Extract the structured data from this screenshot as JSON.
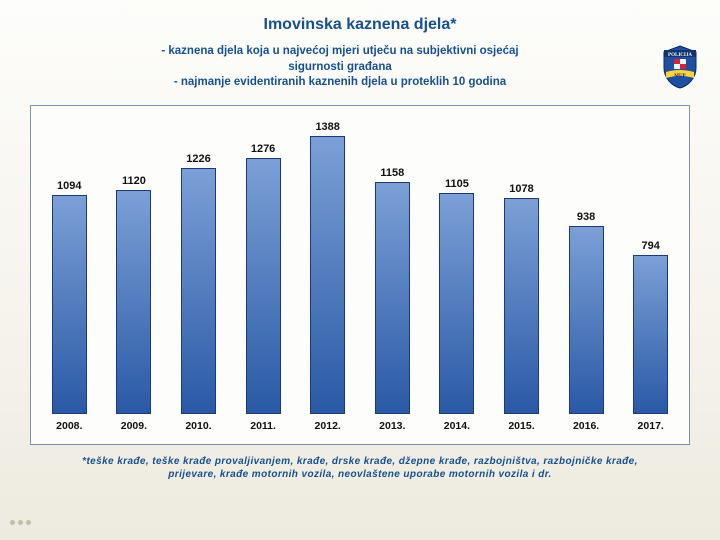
{
  "title": "Imovinska kaznena djela*",
  "subtitle_lines": [
    "- kaznena djela koja u najvećoj mjeri utječu na subjektivni osjećaj",
    "sigurnosti građana",
    "- najmanje evidentiranih kaznenih djela u proteklih 10 godina"
  ],
  "chart": {
    "type": "bar",
    "categories": [
      "2008.",
      "2009.",
      "2010.",
      "2011.",
      "2012.",
      "2013.",
      "2014.",
      "2015.",
      "2016.",
      "2017."
    ],
    "values": [
      1094,
      1120,
      1226,
      1276,
      1388,
      1158,
      1105,
      1078,
      938,
      794
    ],
    "value_labels": [
      "1094",
      "1120",
      "1226",
      "1276",
      "1388",
      "1158",
      "1105",
      "1078",
      "938",
      "794"
    ],
    "y_max": 1500,
    "bar_gradient_top": "#7ca0d6",
    "bar_gradient_bottom": "#2a59a6",
    "bar_border": "#1a3a7a",
    "box_border": "#7a91b1",
    "box_bg": "#fdfdfb",
    "label_fontsize": 11,
    "label_color": "#111111",
    "xlabel_fontsize": 10.5,
    "bar_width_pct": 60
  },
  "colors": {
    "heading": "#174f8f",
    "bg_top": "#fdfdfb",
    "bg_bottom": "#edebdf"
  },
  "footnote": "*teške krađe, teške krađe provaljivanjem, krađe, drske krađe, džepne krađe, razbojništva, razbojničke krađe, prijevare, krađe motornih vozila, neovlaštene uporabe motornih vozila i dr.",
  "badge": {
    "name": "policija-mup-badge",
    "shield_fill": "#1f4fa0",
    "band_fill": "#ffd23f",
    "text_top": "POLICIJA",
    "text_bottom": "MUP"
  }
}
